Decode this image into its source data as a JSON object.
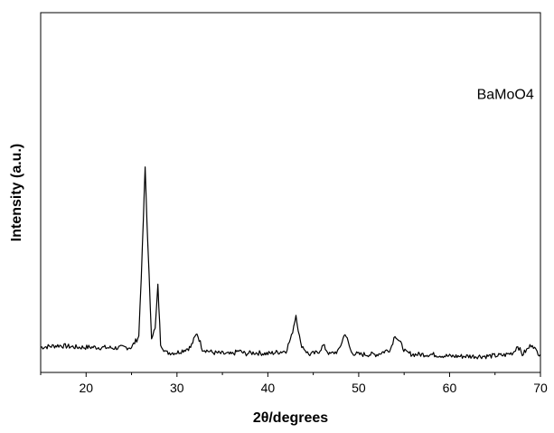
{
  "chart_data": {
    "type": "line",
    "xlabel": "2θ/degrees",
    "ylabel": "Intensity (a.u.)",
    "xlim": [
      15,
      70
    ],
    "ylim": [
      0,
      100
    ],
    "x_ticks": [
      20,
      30,
      40,
      50,
      60,
      70
    ],
    "y_ticks_labeled": false,
    "grid": false,
    "annotations": [
      {
        "text": "BaMoO4",
        "x": 63,
        "y": 76
      }
    ],
    "series": [
      {
        "color": "#000000",
        "x": [
          15,
          17,
          19,
          21,
          23,
          25,
          25.8,
          26.2,
          26.5,
          26.8,
          27.2,
          27.6,
          27.9,
          28.2,
          28.8,
          30,
          31.5,
          32.2,
          32.8,
          34,
          36,
          36.8,
          37.5,
          38.5,
          40,
          42,
          42.6,
          43.1,
          43.6,
          44.5,
          45.5,
          46.1,
          46.8,
          47.8,
          48.5,
          49.2,
          50,
          52,
          53.5,
          54,
          54.5,
          55.2,
          56,
          58,
          60,
          62,
          64,
          66,
          67,
          67.5,
          68,
          68.6,
          69.1,
          69.5,
          70
        ],
        "y": [
          7,
          7.5,
          7,
          7,
          6.8,
          7,
          10,
          35,
          57,
          35,
          10,
          12,
          24,
          8,
          5.5,
          5.5,
          7,
          11,
          6.5,
          5.5,
          5,
          6,
          5.2,
          5.5,
          5.2,
          6,
          10,
          16,
          8,
          5,
          5.5,
          7.5,
          5,
          6,
          11,
          5.5,
          5,
          5,
          6.5,
          10.5,
          8.5,
          5.5,
          5,
          5,
          4.5,
          4.5,
          4.5,
          4.8,
          5.5,
          7.5,
          5,
          6.5,
          8,
          6,
          5
        ]
      }
    ]
  }
}
